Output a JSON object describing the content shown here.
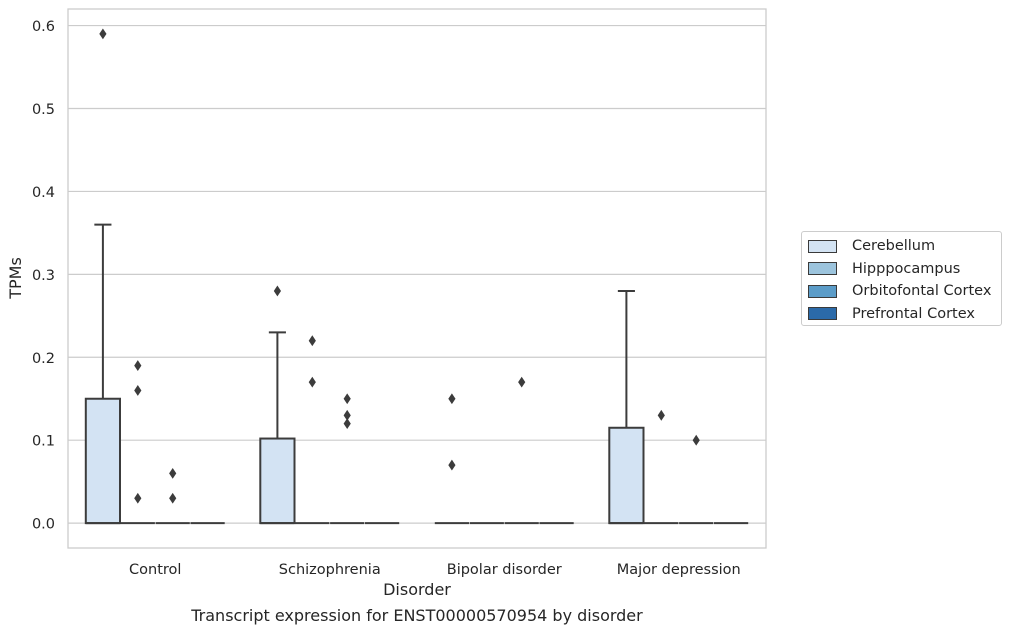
{
  "caption": "Transcript expression for ENST00000570954 by disorder",
  "chart_data": {
    "type": "box",
    "xlabel": "Disorder",
    "ylabel": "TPMs",
    "ylim": [
      -0.03,
      0.62
    ],
    "yticks": [
      0.0,
      0.1,
      0.2,
      0.3,
      0.4,
      0.5,
      0.6
    ],
    "ytick_labels": [
      "0.0",
      "0.1",
      "0.2",
      "0.3",
      "0.4",
      "0.5",
      "0.6"
    ],
    "grid": "horizontal",
    "legend_position": "right",
    "categories": [
      "Control",
      "Schizophrenia",
      "Bipolar disorder",
      "Major depression"
    ],
    "series": [
      {
        "name": "Cerebellum",
        "color": "#d3e3f3",
        "boxes": [
          {
            "q1": 0,
            "median": 0,
            "q3": 0.15,
            "whisker_low": 0,
            "whisker_high": 0.36,
            "outliers": [
              0.59
            ]
          },
          {
            "q1": 0,
            "median": 0,
            "q3": 0.102,
            "whisker_low": 0,
            "whisker_high": 0.23,
            "outliers": [
              0.28
            ]
          },
          {
            "q1": 0,
            "median": 0,
            "q3": 0,
            "whisker_low": 0,
            "whisker_high": 0,
            "outliers": [
              0.15,
              0.07
            ]
          },
          {
            "q1": 0,
            "median": 0,
            "q3": 0.115,
            "whisker_low": 0,
            "whisker_high": 0.28,
            "outliers": []
          }
        ]
      },
      {
        "name": "Hipppocampus",
        "color": "#9cc4dd",
        "boxes": [
          {
            "q1": 0,
            "median": 0,
            "q3": 0,
            "whisker_low": 0,
            "whisker_high": 0,
            "outliers": [
              0.19,
              0.16,
              0.03
            ]
          },
          {
            "q1": 0,
            "median": 0,
            "q3": 0,
            "whisker_low": 0,
            "whisker_high": 0,
            "outliers": [
              0.22,
              0.17
            ]
          },
          {
            "q1": 0,
            "median": 0,
            "q3": 0,
            "whisker_low": 0,
            "whisker_high": 0,
            "outliers": []
          },
          {
            "q1": 0,
            "median": 0,
            "q3": 0,
            "whisker_low": 0,
            "whisker_high": 0,
            "outliers": [
              0.13
            ]
          }
        ]
      },
      {
        "name": "Orbitofontal Cortex",
        "color": "#5b9cc8",
        "boxes": [
          {
            "q1": 0,
            "median": 0,
            "q3": 0,
            "whisker_low": 0,
            "whisker_high": 0,
            "outliers": [
              0.06,
              0.03
            ]
          },
          {
            "q1": 0,
            "median": 0,
            "q3": 0,
            "whisker_low": 0,
            "whisker_high": 0,
            "outliers": [
              0.15,
              0.13,
              0.12
            ]
          },
          {
            "q1": 0,
            "median": 0,
            "q3": 0,
            "whisker_low": 0,
            "whisker_high": 0,
            "outliers": [
              0.17
            ]
          },
          {
            "q1": 0,
            "median": 0,
            "q3": 0,
            "whisker_low": 0,
            "whisker_high": 0,
            "outliers": [
              0.1
            ]
          }
        ]
      },
      {
        "name": "Prefrontal Cortex",
        "color": "#2b6aa9",
        "boxes": [
          {
            "q1": 0,
            "median": 0,
            "q3": 0,
            "whisker_low": 0,
            "whisker_high": 0,
            "outliers": []
          },
          {
            "q1": 0,
            "median": 0,
            "q3": 0,
            "whisker_low": 0,
            "whisker_high": 0,
            "outliers": []
          },
          {
            "q1": 0,
            "median": 0,
            "q3": 0,
            "whisker_low": 0,
            "whisker_high": 0,
            "outliers": []
          },
          {
            "q1": 0,
            "median": 0,
            "q3": 0,
            "whisker_low": 0,
            "whisker_high": 0,
            "outliers": []
          }
        ]
      }
    ]
  }
}
